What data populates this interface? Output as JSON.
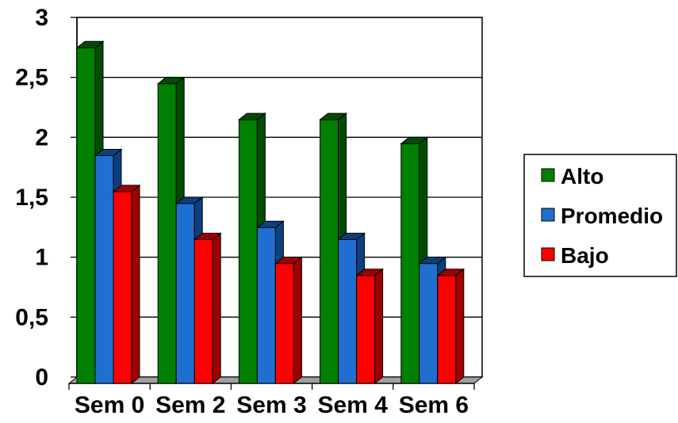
{
  "chart_data": {
    "type": "bar",
    "categories": [
      "Sem 0",
      "Sem 2",
      "Sem 3",
      "Sem 4",
      "Sem 6"
    ],
    "series": [
      {
        "name": "Alto",
        "values": [
          2.8,
          2.5,
          2.2,
          2.2,
          2.0
        ],
        "color": "#008000",
        "shade": "#004d00"
      },
      {
        "name": "Promedio",
        "values": [
          1.9,
          1.5,
          1.3,
          1.2,
          1.0
        ],
        "color": "#1f6fd0",
        "shade": "#0c3f80"
      },
      {
        "name": "Bajo",
        "values": [
          1.6,
          1.2,
          1.0,
          0.9,
          0.9
        ],
        "color": "#ff0000",
        "shade": "#a00000"
      }
    ],
    "yticks": [
      "0",
      "0,5",
      "1",
      "1,5",
      "2",
      "2,5",
      "3"
    ],
    "ylim": [
      0,
      3
    ],
    "grid": true,
    "legend_position": "right",
    "title": "",
    "xlabel": "",
    "ylabel": ""
  }
}
